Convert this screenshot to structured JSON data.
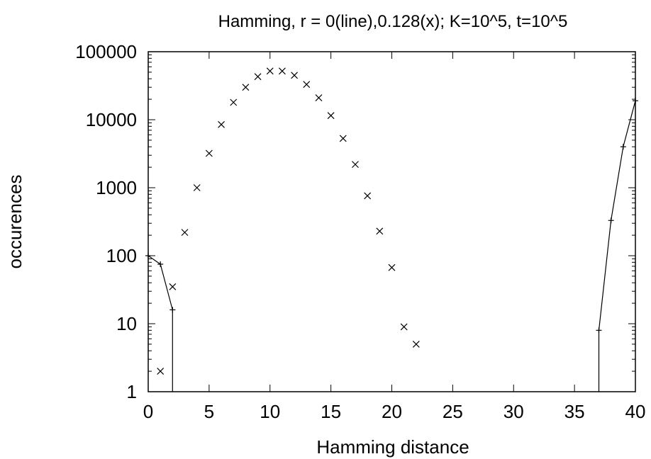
{
  "chart_data": {
    "type": "scatter",
    "title": "Hamming, r = 0(line),0.128(x); K=10^5, t=10^5",
    "xlabel": "Hamming distance",
    "ylabel": "occurences",
    "xlim": [
      0,
      40
    ],
    "ylim": [
      1,
      100000
    ],
    "y_scale": "log",
    "grid": false,
    "x_ticks": [
      "0",
      "5",
      "10",
      "15",
      "20",
      "25",
      "30",
      "35",
      "40"
    ],
    "x_tick_values": [
      0,
      5,
      10,
      15,
      20,
      25,
      30,
      35,
      40
    ],
    "y_ticks": [
      "1",
      "10",
      "100",
      "1000",
      "10000",
      "100000"
    ],
    "y_tick_values": [
      1,
      10,
      100,
      1000,
      10000,
      100000
    ],
    "series": [
      {
        "style": "line",
        "marker": "+",
        "segments": [
          [
            [
              0,
              100
            ],
            [
              1,
              75
            ],
            [
              2,
              16
            ],
            [
              2,
              1
            ]
          ],
          [
            [
              37,
              1
            ],
            [
              37,
              8
            ],
            [
              38,
              330
            ],
            [
              39,
              4000
            ],
            [
              40,
              19000
            ]
          ]
        ]
      },
      {
        "style": "points",
        "marker": "x",
        "points": [
          [
            1,
            2
          ],
          [
            2,
            35
          ],
          [
            3,
            220
          ],
          [
            4,
            1000
          ],
          [
            5,
            3200
          ],
          [
            6,
            8500
          ],
          [
            7,
            18000
          ],
          [
            8,
            30000
          ],
          [
            9,
            43000
          ],
          [
            10,
            52000
          ],
          [
            11,
            52000
          ],
          [
            12,
            45000
          ],
          [
            13,
            33000
          ],
          [
            14,
            21000
          ],
          [
            15,
            11500
          ],
          [
            16,
            5300
          ],
          [
            17,
            2200
          ],
          [
            18,
            760
          ],
          [
            19,
            230
          ],
          [
            20,
            67
          ],
          [
            21,
            9
          ],
          [
            22,
            5
          ]
        ]
      }
    ]
  }
}
